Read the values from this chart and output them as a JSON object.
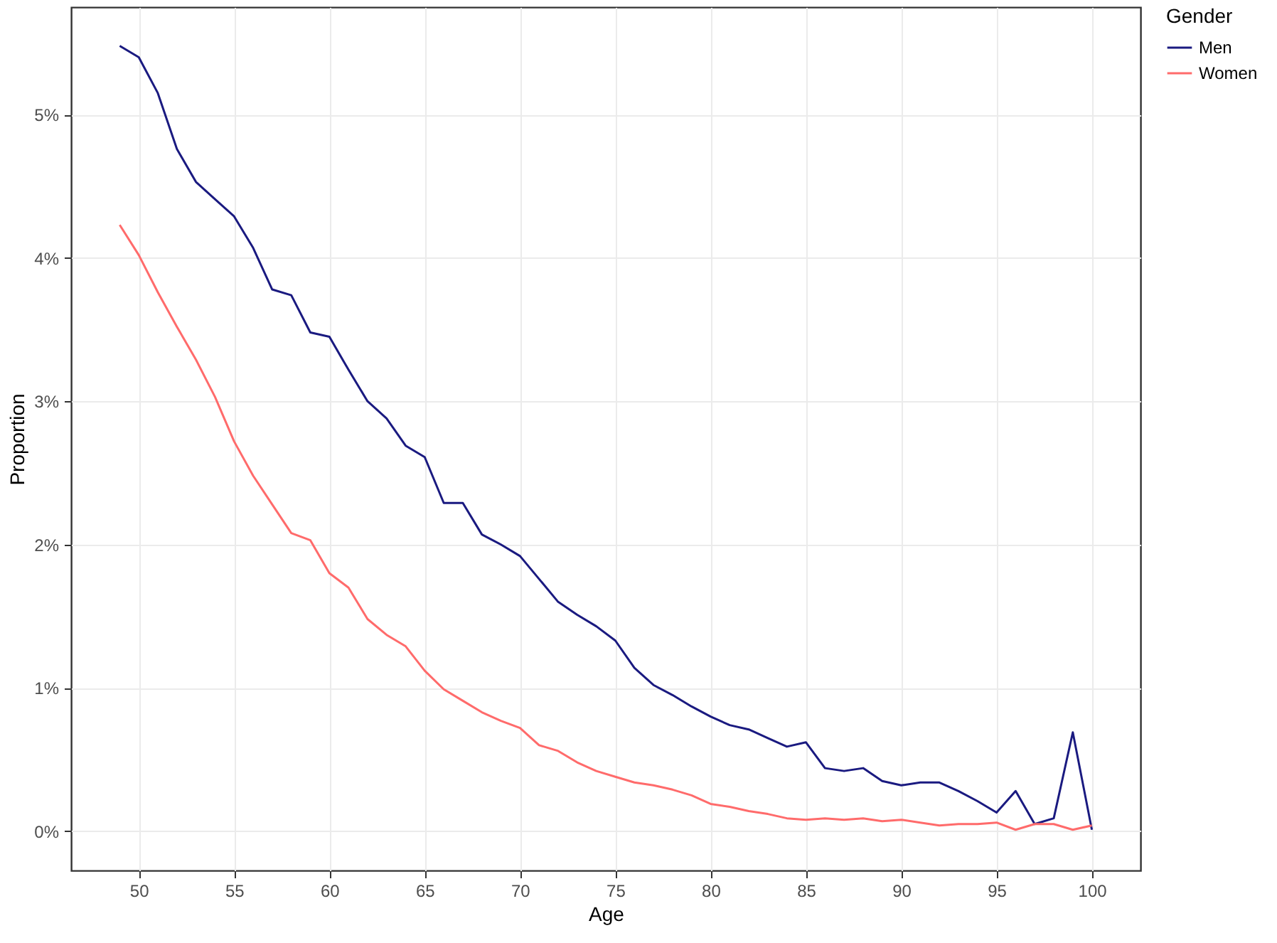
{
  "chart_data": {
    "type": "line",
    "xlabel": "Age",
    "ylabel": "Proportion",
    "legend_title": "Gender",
    "legend": "right",
    "grid": true,
    "line_style": "solid",
    "x": [
      49,
      50,
      51,
      52,
      53,
      54,
      55,
      56,
      57,
      58,
      59,
      60,
      61,
      62,
      63,
      64,
      65,
      66,
      67,
      68,
      69,
      70,
      71,
      72,
      73,
      74,
      75,
      76,
      77,
      78,
      79,
      80,
      81,
      82,
      83,
      84,
      85,
      86,
      87,
      88,
      89,
      90,
      91,
      92,
      93,
      94,
      95,
      96,
      97,
      98,
      99,
      100
    ],
    "xlim": [
      46.45,
      102.55
    ],
    "xticks": [
      50,
      55,
      60,
      65,
      70,
      75,
      80,
      85,
      90,
      95,
      100
    ],
    "ylim": [
      -0.274,
      5.75
    ],
    "yticks": [
      {
        "value": 0,
        "label": "0%"
      },
      {
        "value": 1,
        "label": "1%"
      },
      {
        "value": 2,
        "label": "2%"
      },
      {
        "value": 3,
        "label": "3%"
      },
      {
        "value": 4,
        "label": "4%"
      },
      {
        "value": 5,
        "label": "5%"
      }
    ],
    "series": [
      {
        "name": "Men",
        "color": "#1a1a80",
        "values": [
          5.48,
          5.4,
          5.15,
          4.76,
          4.53,
          4.41,
          4.29,
          4.07,
          3.78,
          3.74,
          3.48,
          3.45,
          3.22,
          3.0,
          2.88,
          2.69,
          2.61,
          2.29,
          2.29,
          2.07,
          2.0,
          1.92,
          1.76,
          1.6,
          1.51,
          1.43,
          1.33,
          1.14,
          1.02,
          0.95,
          0.87,
          0.8,
          0.74,
          0.71,
          0.65,
          0.59,
          0.62,
          0.44,
          0.42,
          0.44,
          0.35,
          0.32,
          0.34,
          0.34,
          0.28,
          0.21,
          0.13,
          0.28,
          0.05,
          0.09,
          0.69,
          0.01
        ]
      },
      {
        "name": "Women",
        "color": "#ff6b6b",
        "values": [
          4.23,
          4.02,
          3.76,
          3.52,
          3.29,
          3.03,
          2.72,
          2.48,
          2.28,
          2.08,
          2.03,
          1.8,
          1.7,
          1.48,
          1.37,
          1.29,
          1.12,
          0.99,
          0.91,
          0.83,
          0.77,
          0.72,
          0.6,
          0.56,
          0.48,
          0.42,
          0.38,
          0.34,
          0.32,
          0.29,
          0.25,
          0.19,
          0.17,
          0.14,
          0.12,
          0.09,
          0.08,
          0.09,
          0.08,
          0.09,
          0.07,
          0.08,
          0.06,
          0.04,
          0.05,
          0.05,
          0.06,
          0.01,
          0.05,
          0.05,
          0.01,
          0.04
        ]
      }
    ]
  }
}
